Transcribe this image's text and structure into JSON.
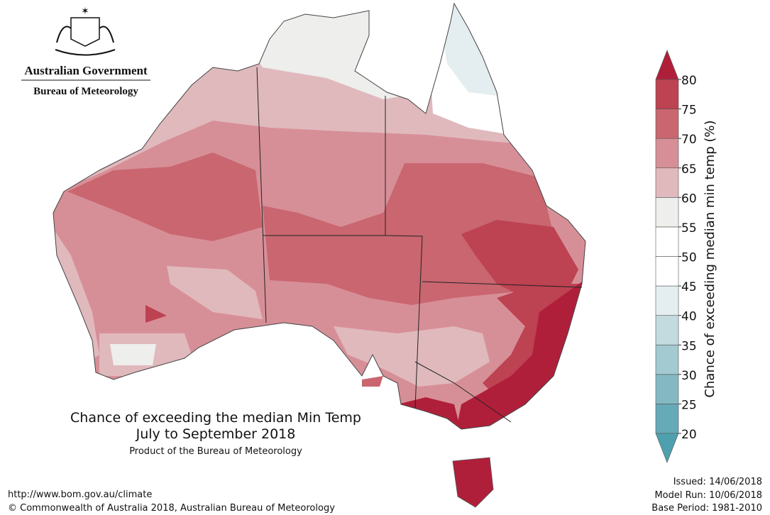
{
  "header": {
    "government": "Australian Government",
    "agency": "Bureau of Meteorology"
  },
  "map": {
    "title": "Chance of exceeding the median Min Temp",
    "period": "July to September 2018",
    "credit": "Product of the Bureau of Meteorology"
  },
  "colorbar": {
    "label": "Chance of exceeding median min temp (%)",
    "lim": [
      20,
      80
    ],
    "ticks": [
      20,
      25,
      30,
      35,
      40,
      45,
      50,
      55,
      60,
      65,
      70,
      75,
      80
    ],
    "colors": [
      "#66aab8",
      "#84b9c4",
      "#a3c9d1",
      "#c3dade",
      "#e4eef0",
      "#ffffff",
      "#ffffff",
      "#eeeeec",
      "#e0b9bd",
      "#d78f97",
      "#c96670",
      "#bd4252"
    ],
    "under_color": "#4fa0ae",
    "over_color": "#b01f3a"
  },
  "footer": {
    "url": "http://www.bom.gov.au/climate",
    "copyright": "© Commonwealth of Australia 2018, Australian Bureau of Meteorology",
    "issued": "Issued: 14/06/2018",
    "model_run": "Model Run: 10/06/2018",
    "base_period": "Base Period: 1981-2010"
  }
}
